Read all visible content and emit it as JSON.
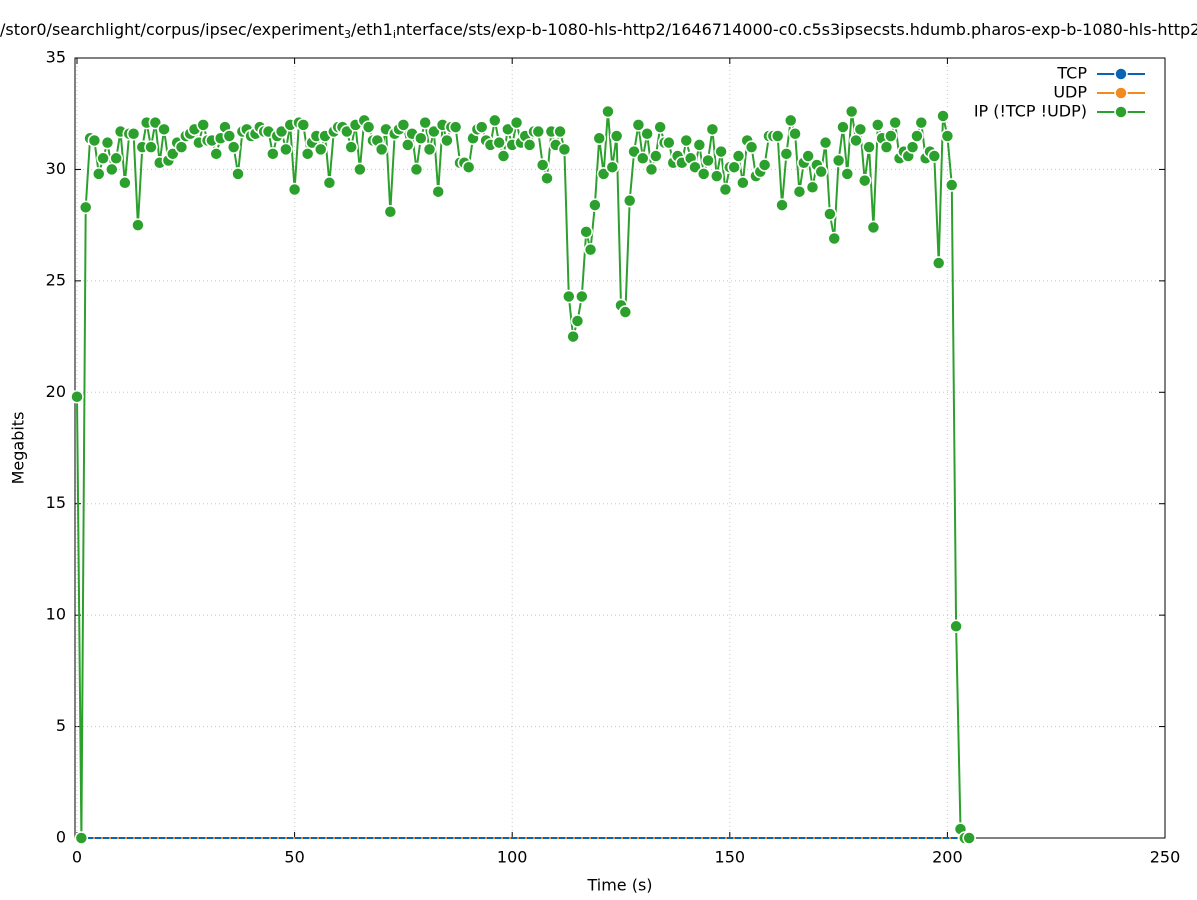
{
  "chart_data": {
    "type": "line",
    "title_parts": [
      "/stor0/searchlight/corpus/ipsec/experiment",
      "3",
      "/eth1",
      "i",
      "nterface/sts/exp-b-1080-hls-http2/1646714000-c0.c5s3ipsecsts.hdumb.pharos-exp-b-1080-hls-http2"
    ],
    "x_label": "Time (s)",
    "y_label": "Megabits",
    "xlim": [
      0,
      250
    ],
    "xticks": [
      0,
      50,
      100,
      150,
      200,
      250
    ],
    "ylim": [
      0,
      35
    ],
    "yticks": [
      0,
      5,
      10,
      15,
      20,
      25,
      30,
      35
    ],
    "grid": true,
    "legend": "top-right",
    "x": [
      0,
      1,
      2,
      3,
      4,
      5,
      6,
      7,
      8,
      9,
      10,
      11,
      12,
      13,
      14,
      15,
      16,
      17,
      18,
      19,
      20,
      21,
      22,
      23,
      24,
      25,
      26,
      27,
      28,
      29,
      30,
      31,
      32,
      33,
      34,
      35,
      36,
      37,
      38,
      39,
      40,
      41,
      42,
      43,
      44,
      45,
      46,
      47,
      48,
      49,
      50,
      51,
      52,
      53,
      54,
      55,
      56,
      57,
      58,
      59,
      60,
      61,
      62,
      63,
      64,
      65,
      66,
      67,
      68,
      69,
      70,
      71,
      72,
      73,
      74,
      75,
      76,
      77,
      78,
      79,
      80,
      81,
      82,
      83,
      84,
      85,
      86,
      87,
      88,
      89,
      90,
      91,
      92,
      93,
      94,
      95,
      96,
      97,
      98,
      99,
      100,
      101,
      102,
      103,
      104,
      105,
      106,
      107,
      108,
      109,
      110,
      111,
      112,
      113,
      114,
      115,
      116,
      117,
      118,
      119,
      120,
      121,
      122,
      123,
      124,
      125,
      126,
      127,
      128,
      129,
      130,
      131,
      132,
      133,
      134,
      135,
      136,
      137,
      138,
      139,
      140,
      141,
      142,
      143,
      144,
      145,
      146,
      147,
      148,
      149,
      150,
      151,
      152,
      153,
      154,
      155,
      156,
      157,
      158,
      159,
      160,
      161,
      162,
      163,
      164,
      165,
      166,
      167,
      168,
      169,
      170,
      171,
      172,
      173,
      174,
      175,
      176,
      177,
      178,
      179,
      180,
      181,
      182,
      183,
      184,
      185,
      186,
      187,
      188,
      189,
      190,
      191,
      192,
      193,
      194,
      195,
      196,
      197,
      198,
      199,
      200,
      201,
      202,
      203,
      204,
      205
    ],
    "series": [
      {
        "name": "TCP",
        "color": "#0a64b4",
        "values": [
          0,
          0,
          0,
          0,
          0,
          0,
          0,
          0,
          0,
          0,
          0,
          0,
          0,
          0,
          0,
          0,
          0,
          0,
          0,
          0,
          0,
          0,
          0,
          0,
          0,
          0,
          0,
          0,
          0,
          0,
          0,
          0,
          0,
          0,
          0,
          0,
          0,
          0,
          0,
          0,
          0,
          0,
          0,
          0,
          0,
          0,
          0,
          0,
          0,
          0,
          0,
          0,
          0,
          0,
          0,
          0,
          0,
          0,
          0,
          0,
          0,
          0,
          0,
          0,
          0,
          0,
          0,
          0,
          0,
          0,
          0,
          0,
          0,
          0,
          0,
          0,
          0,
          0,
          0,
          0,
          0,
          0,
          0,
          0,
          0,
          0,
          0,
          0,
          0,
          0,
          0,
          0,
          0,
          0,
          0,
          0,
          0,
          0,
          0,
          0,
          0,
          0,
          0,
          0,
          0,
          0,
          0,
          0,
          0,
          0,
          0,
          0,
          0,
          0,
          0,
          0,
          0,
          0,
          0,
          0,
          0,
          0,
          0,
          0,
          0,
          0,
          0,
          0,
          0,
          0,
          0,
          0,
          0,
          0,
          0,
          0,
          0,
          0,
          0,
          0,
          0,
          0,
          0,
          0,
          0,
          0,
          0,
          0,
          0,
          0,
          0,
          0,
          0,
          0,
          0,
          0,
          0,
          0,
          0,
          0,
          0,
          0,
          0,
          0,
          0,
          0,
          0,
          0,
          0,
          0,
          0,
          0,
          0,
          0,
          0,
          0,
          0,
          0,
          0,
          0,
          0,
          0,
          0,
          0,
          0,
          0,
          0,
          0,
          0,
          0,
          0,
          0,
          0,
          0,
          0,
          0,
          0,
          0,
          0,
          0,
          0,
          0,
          0,
          0,
          0,
          0
        ]
      },
      {
        "name": "UDP",
        "color": "#f28a1e",
        "values": [
          0,
          0,
          0,
          0,
          0,
          0,
          0,
          0,
          0,
          0,
          0,
          0,
          0,
          0,
          0,
          0,
          0,
          0,
          0,
          0,
          0,
          0,
          0,
          0,
          0,
          0,
          0,
          0,
          0,
          0,
          0,
          0,
          0,
          0,
          0,
          0,
          0,
          0,
          0,
          0,
          0,
          0,
          0,
          0,
          0,
          0,
          0,
          0,
          0,
          0,
          0,
          0,
          0,
          0,
          0,
          0,
          0,
          0,
          0,
          0,
          0,
          0,
          0,
          0,
          0,
          0,
          0,
          0,
          0,
          0,
          0,
          0,
          0,
          0,
          0,
          0,
          0,
          0,
          0,
          0,
          0,
          0,
          0,
          0,
          0,
          0,
          0,
          0,
          0,
          0,
          0,
          0,
          0,
          0,
          0,
          0,
          0,
          0,
          0,
          0,
          0,
          0,
          0,
          0,
          0,
          0,
          0,
          0,
          0,
          0,
          0,
          0,
          0,
          0,
          0,
          0,
          0,
          0,
          0,
          0,
          0,
          0,
          0,
          0,
          0,
          0,
          0,
          0,
          0,
          0,
          0,
          0,
          0,
          0,
          0,
          0,
          0,
          0,
          0,
          0,
          0,
          0,
          0,
          0,
          0,
          0,
          0,
          0,
          0,
          0,
          0,
          0,
          0,
          0,
          0,
          0,
          0,
          0,
          0,
          0,
          0,
          0,
          0,
          0,
          0,
          0,
          0,
          0,
          0,
          0,
          0,
          0,
          0,
          0,
          0,
          0,
          0,
          0,
          0,
          0,
          0,
          0,
          0,
          0,
          0,
          0,
          0,
          0,
          0,
          0,
          0,
          0,
          0,
          0,
          0,
          0,
          0,
          0,
          0,
          0,
          0,
          0,
          0,
          0,
          0,
          0
        ]
      },
      {
        "name": "IP (!TCP  !UDP)",
        "color": "#2ca02c",
        "values": [
          19.8,
          0,
          28.3,
          31.4,
          31.3,
          29.8,
          30.5,
          31.2,
          30.0,
          30.5,
          31.7,
          29.4,
          31.6,
          31.6,
          27.5,
          31.0,
          32.1,
          31.0,
          32.1,
          30.3,
          31.8,
          30.4,
          30.7,
          31.2,
          31.0,
          31.5,
          31.6,
          31.8,
          31.2,
          32.0,
          31.3,
          31.3,
          30.7,
          31.4,
          31.9,
          31.5,
          31.0,
          29.8,
          31.7,
          31.8,
          31.5,
          31.6,
          31.9,
          31.7,
          31.7,
          30.7,
          31.5,
          31.7,
          30.9,
          32.0,
          29.1,
          32.1,
          32.0,
          30.7,
          31.2,
          31.5,
          30.9,
          31.5,
          29.4,
          31.7,
          31.9,
          31.9,
          31.7,
          31.0,
          32.0,
          30.0,
          32.2,
          31.9,
          31.3,
          31.3,
          30.9,
          31.8,
          28.1,
          31.6,
          31.8,
          32.0,
          31.1,
          31.6,
          30.0,
          31.4,
          32.1,
          30.9,
          31.7,
          29.0,
          32.0,
          31.3,
          31.9,
          31.9,
          30.3,
          30.3,
          30.1,
          31.4,
          31.8,
          31.9,
          31.3,
          31.1,
          32.2,
          31.2,
          30.6,
          31.8,
          31.1,
          32.1,
          31.2,
          31.5,
          31.1,
          31.7,
          31.7,
          30.2,
          29.6,
          31.7,
          31.1,
          31.7,
          30.9,
          24.3,
          22.5,
          23.2,
          24.3,
          27.2,
          26.4,
          28.4,
          31.4,
          29.8,
          32.6,
          30.1,
          31.5,
          23.9,
          23.6,
          28.6,
          30.8,
          32.0,
          30.5,
          31.6,
          30.0,
          30.6,
          31.9,
          31.2,
          31.2,
          30.3,
          30.6,
          30.3,
          31.3,
          30.5,
          30.1,
          31.1,
          29.8,
          30.4,
          31.8,
          29.7,
          30.8,
          29.1,
          30.1,
          30.1,
          30.6,
          29.4,
          31.3,
          31.0,
          29.7,
          29.9,
          30.2,
          31.5,
          31.5,
          31.5,
          28.4,
          30.7,
          32.2,
          31.6,
          29.0,
          30.3,
          30.6,
          29.2,
          30.2,
          29.9,
          31.2,
          28.0,
          26.9,
          30.4,
          31.9,
          29.8,
          32.6,
          31.3,
          31.8,
          29.5,
          31.0,
          27.4,
          32.0,
          31.4,
          31.0,
          31.5,
          32.1,
          30.5,
          30.8,
          30.6,
          31.0,
          31.5,
          32.1,
          30.5,
          30.8,
          30.6,
          25.8,
          32.4,
          31.5,
          29.3,
          9.5,
          0.4,
          0,
          0
        ]
      }
    ]
  }
}
